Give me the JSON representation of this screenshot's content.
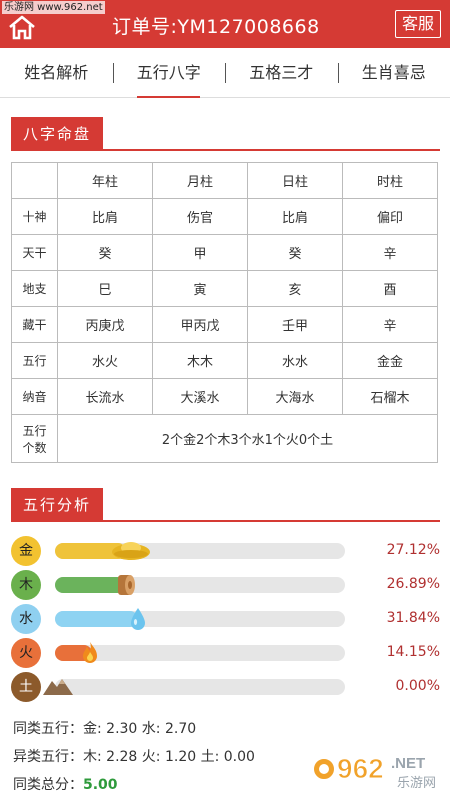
{
  "header": {
    "watermark": "乐游网 www.962.net",
    "order_title": "订单号:YM127008668",
    "service_label": "客服"
  },
  "tabs": [
    {
      "label": "姓名解析",
      "active": false
    },
    {
      "label": "五行八字",
      "active": true
    },
    {
      "label": "五格三才",
      "active": false
    },
    {
      "label": "生肖喜忌",
      "active": false
    }
  ],
  "bazi": {
    "section_title": "八字命盘",
    "columns": [
      "年柱",
      "月柱",
      "日柱",
      "时柱"
    ],
    "rows": [
      {
        "label": "十神",
        "cells": [
          "比肩",
          "伤官",
          "比肩",
          "偏印"
        ]
      },
      {
        "label": "天干",
        "cells": [
          "癸",
          "甲",
          "癸",
          "辛"
        ]
      },
      {
        "label": "地支",
        "cells": [
          "巳",
          "寅",
          "亥",
          "酉"
        ]
      },
      {
        "label": "藏干",
        "cells": [
          "丙庚戊",
          "甲丙戊",
          "壬甲",
          "辛"
        ]
      },
      {
        "label": "五行",
        "cells": [
          "水火",
          "木木",
          "水水",
          "金金"
        ]
      },
      {
        "label": "纳音",
        "cells": [
          "长流水",
          "大溪水",
          "大海水",
          "石榴木"
        ]
      }
    ],
    "count_label_1": "五行",
    "count_label_2": "个数",
    "count_summary": "2个金2个木3个水1个火0个土"
  },
  "wuxing": {
    "section_title": "五行分析",
    "items": [
      {
        "name": "金",
        "percent_text": "27.12%",
        "percent": 27.12,
        "badge_color": "#f2c230",
        "fill_color": "#efc33a"
      },
      {
        "name": "木",
        "percent_text": "26.89%",
        "percent": 26.89,
        "badge_color": "#6ab04c",
        "fill_color": "#6bb35c"
      },
      {
        "name": "水",
        "percent_text": "31.84%",
        "percent": 31.84,
        "badge_color": "#8fd0f0",
        "fill_color": "#8ed3f2"
      },
      {
        "name": "火",
        "percent_text": "14.15%",
        "percent": 14.15,
        "badge_color": "#e8703a",
        "fill_color": "#e8703a"
      },
      {
        "name": "土",
        "percent_text": "0.00%",
        "percent": 0,
        "badge_color": "#8c5a2b",
        "fill_color": "#8c5a2b"
      }
    ]
  },
  "stats": {
    "same_label": "同类五行：",
    "same_values": "金: 2.30 水: 2.70",
    "diff_label": "异类五行：",
    "diff_values": "木: 2.28 火: 1.20 土: 0.00",
    "total_label": "同类总分：",
    "total_value": "5.00"
  },
  "brand": {
    "logo_text": "962",
    "logo_suffix": ".NET",
    "logo_sub": "乐游网"
  }
}
